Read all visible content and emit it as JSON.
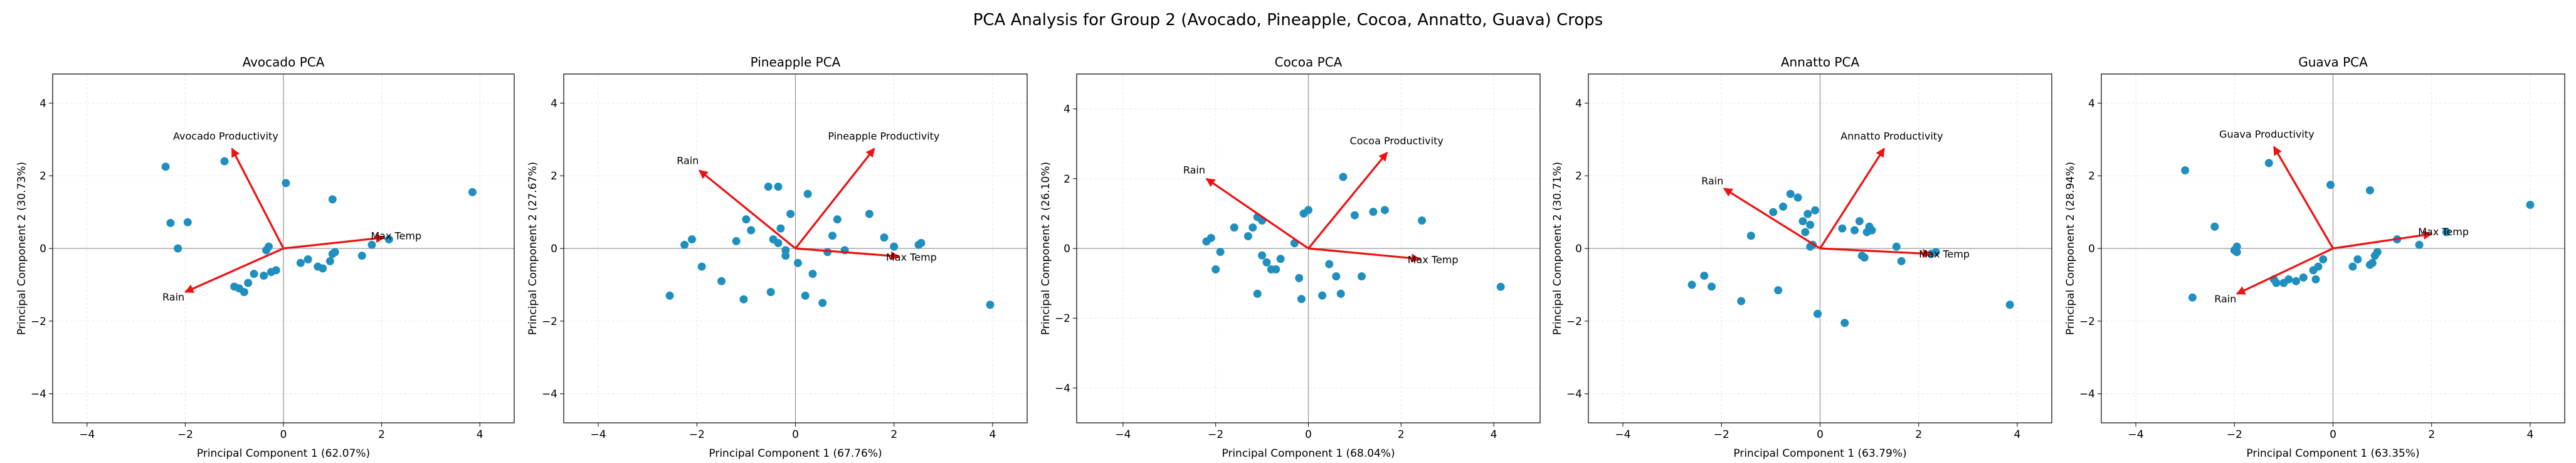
{
  "suptitle": "PCA Analysis for Group 2 (Avocado, Pineapple, Cocoa, Annatto, Guava) Crops",
  "colors": {
    "points": "#1f8fbf",
    "arrows": "#ee1111",
    "axes_lines": "#999999",
    "grid": "#e6e6e6"
  },
  "chart_data": [
    {
      "type": "scatter",
      "title": "Avocado PCA",
      "xlabel": "Principal Component 1 (62.07%)",
      "ylabel": "Principal Component 2 (30.73%)",
      "xlim": [
        -4.7,
        4.7
      ],
      "ylim": [
        -4.8,
        4.8
      ],
      "xticks": [
        -4,
        -2,
        0,
        2,
        4
      ],
      "yticks": [
        -4,
        -2,
        0,
        2,
        4
      ],
      "grid": true,
      "points": [
        [
          -2.4,
          2.25
        ],
        [
          -2.3,
          0.7
        ],
        [
          -2.15,
          0
        ],
        [
          -1.95,
          0.72
        ],
        [
          -1.2,
          2.4
        ],
        [
          -1.0,
          -1.05
        ],
        [
          -0.9,
          -1.1
        ],
        [
          -0.8,
          -1.2
        ],
        [
          -0.72,
          -0.95
        ],
        [
          -0.6,
          -0.7
        ],
        [
          -0.4,
          -0.75
        ],
        [
          -0.35,
          -0.05
        ],
        [
          -0.3,
          0.05
        ],
        [
          -0.25,
          -0.65
        ],
        [
          -0.15,
          -0.6
        ],
        [
          0.05,
          1.8
        ],
        [
          0.35,
          -0.4
        ],
        [
          0.5,
          -0.3
        ],
        [
          0.7,
          -0.5
        ],
        [
          0.8,
          -0.55
        ],
        [
          0.95,
          -0.35
        ],
        [
          1.0,
          -0.15
        ],
        [
          1.05,
          -0.1
        ],
        [
          1.0,
          1.35
        ],
        [
          1.6,
          -0.2
        ],
        [
          1.8,
          0.1
        ],
        [
          2.15,
          0.25
        ],
        [
          3.85,
          1.55
        ]
      ],
      "loadings": [
        {
          "label": "Avocado Productivity",
          "x": -1.05,
          "y": 2.75
        },
        {
          "label": "Max Temp",
          "x": 2.05,
          "y": 0.3
        },
        {
          "label": "Rain",
          "x": -2.0,
          "y": -1.2
        }
      ]
    },
    {
      "type": "scatter",
      "title": "Pineapple PCA",
      "xlabel": "Principal Component 1 (67.76%)",
      "ylabel": "Principal Component 2 (27.67%)",
      "xlim": [
        -4.7,
        4.7
      ],
      "ylim": [
        -4.8,
        4.8
      ],
      "xticks": [
        -4,
        -2,
        0,
        2,
        4
      ],
      "yticks": [
        -4,
        -2,
        0,
        2,
        4
      ],
      "grid": true,
      "points": [
        [
          -2.55,
          -1.3
        ],
        [
          -2.25,
          0.1
        ],
        [
          -2.1,
          0.25
        ],
        [
          -1.9,
          -0.5
        ],
        [
          -1.5,
          -0.9
        ],
        [
          -1.2,
          0.2
        ],
        [
          -1.05,
          -1.4
        ],
        [
          -1.0,
          0.8
        ],
        [
          -0.9,
          0.5
        ],
        [
          -0.55,
          1.7
        ],
        [
          -0.5,
          -1.2
        ],
        [
          -0.45,
          0.25
        ],
        [
          -0.35,
          0.15
        ],
        [
          -0.35,
          1.7
        ],
        [
          -0.3,
          0.55
        ],
        [
          -0.2,
          -0.05
        ],
        [
          -0.2,
          -0.2
        ],
        [
          -0.1,
          0.95
        ],
        [
          0.05,
          -0.4
        ],
        [
          0.2,
          -1.3
        ],
        [
          0.25,
          1.5
        ],
        [
          0.35,
          -0.7
        ],
        [
          0.55,
          -1.5
        ],
        [
          0.65,
          -0.1
        ],
        [
          0.75,
          0.35
        ],
        [
          0.85,
          0.8
        ],
        [
          1.0,
          -0.05
        ],
        [
          1.5,
          0.95
        ],
        [
          1.8,
          0.3
        ],
        [
          2.0,
          0.05
        ],
        [
          2.5,
          0.1
        ],
        [
          2.55,
          0.15
        ],
        [
          3.95,
          -1.55
        ]
      ],
      "loadings": [
        {
          "label": "Pineapple Productivity",
          "x": 1.6,
          "y": 2.75
        },
        {
          "label": "Max Temp",
          "x": 2.1,
          "y": -0.22
        },
        {
          "label": "Rain",
          "x": -1.95,
          "y": 2.15
        }
      ]
    },
    {
      "type": "scatter",
      "title": "Cocoa PCA",
      "xlabel": "Principal Component 1 (68.04%)",
      "ylabel": "Principal Component 2 (26.10%)",
      "xlim": [
        -5.0,
        5.0
      ],
      "ylim": [
        -5.0,
        5.0
      ],
      "xticks": [
        -4,
        -2,
        0,
        2,
        4
      ],
      "yticks": [
        -4,
        -2,
        0,
        2,
        4
      ],
      "grid": true,
      "points": [
        [
          -2.2,
          0.2
        ],
        [
          -2.1,
          0.3
        ],
        [
          -2.0,
          -0.6
        ],
        [
          -1.9,
          -0.1
        ],
        [
          -1.6,
          0.6
        ],
        [
          -1.3,
          0.35
        ],
        [
          -1.2,
          0.6
        ],
        [
          -1.1,
          0.9
        ],
        [
          -1.1,
          -1.3
        ],
        [
          -1.0,
          0.8
        ],
        [
          -1.0,
          -0.2
        ],
        [
          -0.9,
          -0.4
        ],
        [
          -0.8,
          -0.6
        ],
        [
          -0.7,
          -0.6
        ],
        [
          -0.6,
          -0.3
        ],
        [
          -0.3,
          0.15
        ],
        [
          -0.2,
          -0.85
        ],
        [
          -0.15,
          -1.45
        ],
        [
          -0.1,
          1.0
        ],
        [
          0.0,
          1.1
        ],
        [
          0.3,
          -1.35
        ],
        [
          0.45,
          -0.45
        ],
        [
          0.6,
          -0.8
        ],
        [
          0.7,
          -1.3
        ],
        [
          0.75,
          2.05
        ],
        [
          1.0,
          0.95
        ],
        [
          1.15,
          -0.8
        ],
        [
          1.4,
          1.05
        ],
        [
          1.65,
          1.1
        ],
        [
          2.45,
          0.8
        ],
        [
          4.15,
          -1.1
        ]
      ],
      "loadings": [
        {
          "label": "Cocoa Productivity",
          "x": 1.7,
          "y": 2.75
        },
        {
          "label": "Max Temp",
          "x": 2.4,
          "y": -0.3
        },
        {
          "label": "Rain",
          "x": -2.2,
          "y": 2.0
        }
      ]
    },
    {
      "type": "scatter",
      "title": "Annatto PCA",
      "xlabel": "Principal Component 1 (63.79%)",
      "ylabel": "Principal Component 2 (30.71%)",
      "xlim": [
        -4.7,
        4.7
      ],
      "ylim": [
        -4.8,
        4.8
      ],
      "xticks": [
        -4,
        -2,
        0,
        2,
        4
      ],
      "yticks": [
        -4,
        -2,
        0,
        2,
        4
      ],
      "grid": true,
      "points": [
        [
          -2.6,
          -1.0
        ],
        [
          -2.35,
          -0.75
        ],
        [
          -2.2,
          -1.05
        ],
        [
          -1.6,
          -1.45
        ],
        [
          -1.4,
          0.35
        ],
        [
          -0.95,
          1.0
        ],
        [
          -0.85,
          -1.15
        ],
        [
          -0.75,
          1.15
        ],
        [
          -0.6,
          1.5
        ],
        [
          -0.45,
          1.4
        ],
        [
          -0.35,
          0.75
        ],
        [
          -0.3,
          0.45
        ],
        [
          -0.25,
          0.95
        ],
        [
          -0.2,
          0.65
        ],
        [
          -0.2,
          0.05
        ],
        [
          -0.15,
          0.1
        ],
        [
          -0.1,
          1.05
        ],
        [
          -0.05,
          -1.8
        ],
        [
          0.45,
          0.55
        ],
        [
          0.5,
          -2.05
        ],
        [
          0.7,
          0.5
        ],
        [
          0.8,
          0.75
        ],
        [
          0.85,
          -0.2
        ],
        [
          0.9,
          -0.25
        ],
        [
          0.95,
          0.45
        ],
        [
          1.0,
          0.6
        ],
        [
          1.05,
          0.5
        ],
        [
          1.55,
          0.05
        ],
        [
          1.65,
          -0.35
        ],
        [
          2.25,
          -0.15
        ],
        [
          2.35,
          -0.1
        ],
        [
          3.85,
          -1.55
        ]
      ],
      "loadings": [
        {
          "label": "Annatto Productivity",
          "x": 1.3,
          "y": 2.75
        },
        {
          "label": "Max Temp",
          "x": 2.25,
          "y": -0.15
        },
        {
          "label": "Rain",
          "x": -1.95,
          "y": 1.65
        }
      ]
    },
    {
      "type": "scatter",
      "title": "Guava PCA",
      "xlabel": "Principal Component 1 (63.35%)",
      "ylabel": "Principal Component 2 (28.94%)",
      "xlim": [
        -4.7,
        4.7
      ],
      "ylim": [
        -4.8,
        4.8
      ],
      "xticks": [
        -4,
        -2,
        0,
        2,
        4
      ],
      "yticks": [
        -4,
        -2,
        0,
        2,
        4
      ],
      "grid": true,
      "points": [
        [
          -3.0,
          2.15
        ],
        [
          -2.85,
          -1.35
        ],
        [
          -2.4,
          0.6
        ],
        [
          -2.0,
          -0.05
        ],
        [
          -1.95,
          -0.1
        ],
        [
          -1.95,
          0.05
        ],
        [
          -1.3,
          2.35
        ],
        [
          -1.2,
          -0.85
        ],
        [
          -1.15,
          -0.95
        ],
        [
          -1.0,
          -0.95
        ],
        [
          -0.9,
          -0.85
        ],
        [
          -0.75,
          -0.9
        ],
        [
          -0.6,
          -0.8
        ],
        [
          -0.4,
          -0.6
        ],
        [
          -0.35,
          -0.85
        ],
        [
          -0.3,
          -0.5
        ],
        [
          -0.2,
          -0.3
        ],
        [
          -0.05,
          1.75
        ],
        [
          0.4,
          -0.5
        ],
        [
          0.5,
          -0.3
        ],
        [
          0.75,
          -0.45
        ],
        [
          0.8,
          -0.4
        ],
        [
          0.85,
          -0.2
        ],
        [
          0.9,
          -0.1
        ],
        [
          0.75,
          1.6
        ],
        [
          1.3,
          0.25
        ],
        [
          1.75,
          0.1
        ],
        [
          2.3,
          0.45
        ],
        [
          4.0,
          1.2
        ]
      ],
      "loadings": [
        {
          "label": "Guava Productivity",
          "x": -1.2,
          "y": 2.8
        },
        {
          "label": "Max Temp",
          "x": 2.0,
          "y": 0.4
        },
        {
          "label": "Rain",
          "x": -1.95,
          "y": -1.25
        }
      ]
    }
  ]
}
